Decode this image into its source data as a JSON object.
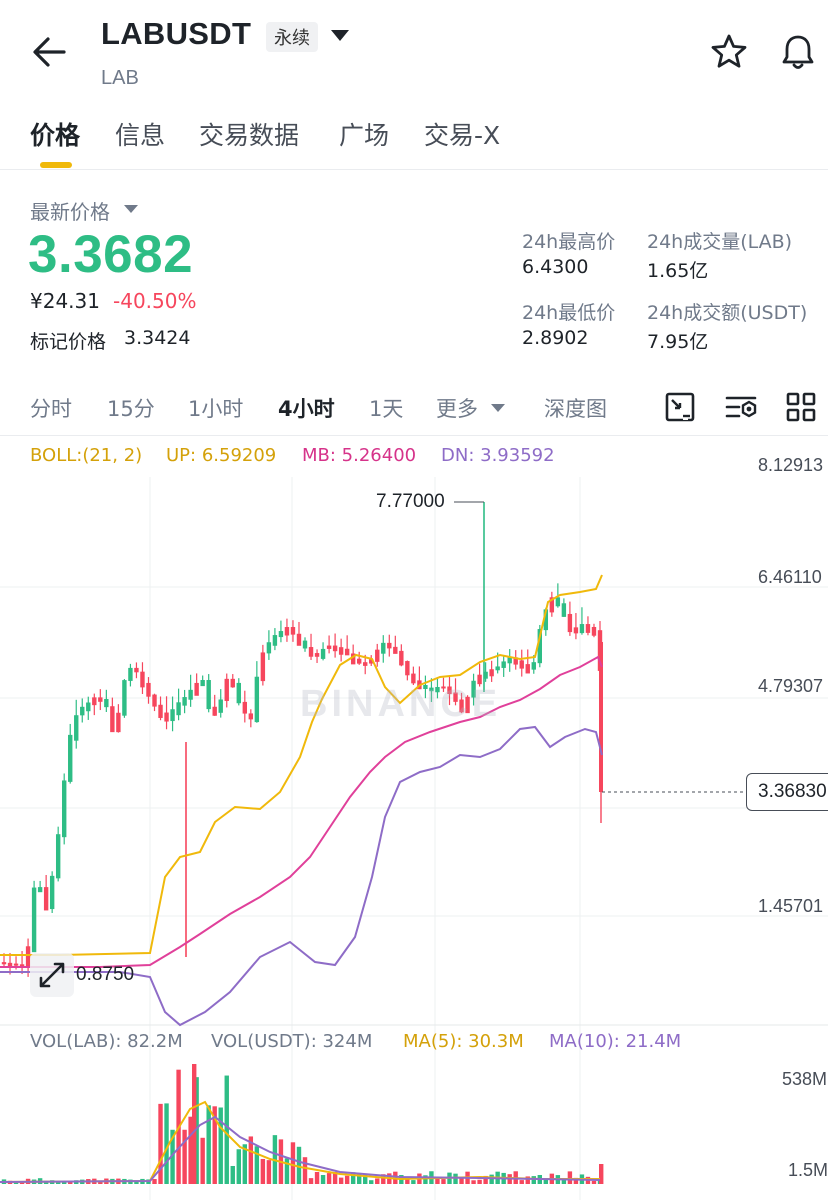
{
  "header": {
    "symbol": "LABUSDT",
    "contract_type": "永续",
    "base_asset": "LAB"
  },
  "tabs": [
    {
      "label": "价格"
    },
    {
      "label": "信息"
    },
    {
      "label": "交易数据"
    },
    {
      "label": "广场"
    },
    {
      "label": "交易-X"
    }
  ],
  "price": {
    "label": "最新价格",
    "last": "3.3682",
    "cny": "¥24.31",
    "change": "-40.50%",
    "mark_label": "标记价格",
    "mark_value": "3.3424"
  },
  "stats": {
    "high_label": "24h最高价",
    "high_value": "6.4300",
    "vol_base_label": "24h成交量(LAB)",
    "vol_base_value": "1.65亿",
    "low_label": "24h最低价",
    "low_value": "2.8902",
    "vol_quote_label": "24h成交额(USDT)",
    "vol_quote_value": "7.95亿"
  },
  "intervals": [
    {
      "label": "分时"
    },
    {
      "label": "15分"
    },
    {
      "label": "1小时"
    },
    {
      "label": "4小时"
    },
    {
      "label": "1天"
    },
    {
      "label": "更多"
    },
    {
      "label": "深度图"
    }
  ],
  "indicators": {
    "boll": "BOLL:(21, 2)",
    "up": "UP: 6.59209",
    "mb": "MB: 5.26400",
    "dn": "DN: 3.93592",
    "vol_base": "VOL(LAB): 82.2M",
    "vol_quote": "VOL(USDT): 324M",
    "ma5": "MA(5): 30.3M",
    "ma10": "MA(10): 21.4M"
  },
  "price_axis": [
    "8.12913",
    "6.46110",
    "4.79307",
    "1.45701"
  ],
  "volume_axis": [
    "538M",
    "1.5M"
  ],
  "current_price_tag": "3.36830",
  "high_marker": "7.77000",
  "low_marker": "0.8750",
  "watermark": "BINANCE",
  "colors": {
    "up": "#2ebd85",
    "down": "#f6465d",
    "accent": "#f0b90b",
    "boll_up": "#f0b90b",
    "boll_mb": "#e0409a",
    "boll_dn": "#8e6cc7"
  },
  "icons": [
    "back-arrow-icon",
    "star-icon",
    "bell-icon",
    "indicator-settings-icon",
    "chart-settings-icon",
    "grid-layout-icon",
    "expand-icon"
  ]
}
